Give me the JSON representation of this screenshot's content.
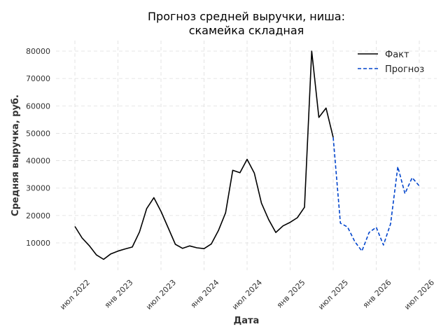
{
  "chart_data": {
    "type": "line",
    "title_lines": [
      "Прогноз средней выручки, ниша:",
      "скамейка складная"
    ],
    "xlabel": "Дата",
    "ylabel": "Средняя выручка, руб.",
    "x_ticks": [
      "июл 2022",
      "янв 2023",
      "июл 2023",
      "янв 2024",
      "июл 2024",
      "янв 2025",
      "июл 2025",
      "янв 2026",
      "июл 2026"
    ],
    "y_ticks": [
      "10000",
      "20000",
      "30000",
      "40000",
      "50000",
      "60000",
      "70000",
      "80000"
    ],
    "ylim": [
      0,
      84000
    ],
    "grid": true,
    "legend_position": "top-right",
    "colors": {
      "fact": "#000000",
      "forecast": "#0044cc"
    },
    "series": [
      {
        "name": "Факт",
        "style": "solid",
        "x": [
          "2022-07",
          "2022-08",
          "2022-09",
          "2022-10",
          "2022-11",
          "2022-12",
          "2023-01",
          "2023-02",
          "2023-03",
          "2023-04",
          "2023-05",
          "2023-06",
          "2023-07",
          "2023-08",
          "2023-09",
          "2023-10",
          "2023-11",
          "2023-12",
          "2024-01",
          "2024-02",
          "2024-03",
          "2024-04",
          "2024-05",
          "2024-06",
          "2024-07",
          "2024-08",
          "2024-09",
          "2024-10",
          "2024-11",
          "2024-12",
          "2025-01",
          "2025-02",
          "2025-03",
          "2025-04",
          "2025-05",
          "2025-06",
          "2025-07"
        ],
        "values": [
          16000,
          11800,
          9000,
          5600,
          4000,
          6000,
          7000,
          7800,
          8500,
          14000,
          22500,
          26500,
          21500,
          15500,
          9500,
          8000,
          8900,
          8200,
          7900,
          9600,
          14500,
          21000,
          36500,
          35600,
          40500,
          35500,
          24500,
          18500,
          13800,
          16200,
          17500,
          19200,
          23000,
          80000,
          55800,
          59200,
          48500
        ]
      },
      {
        "name": "Прогноз",
        "style": "dashed",
        "x": [
          "2025-07",
          "2025-08",
          "2025-09",
          "2025-10",
          "2025-11",
          "2025-12",
          "2026-01",
          "2026-02",
          "2026-03",
          "2026-04",
          "2026-05",
          "2026-06",
          "2026-07"
        ],
        "values": [
          48500,
          17200,
          15800,
          10500,
          7000,
          13800,
          15700,
          9200,
          17000,
          37800,
          28000,
          33800,
          30800
        ]
      }
    ]
  }
}
